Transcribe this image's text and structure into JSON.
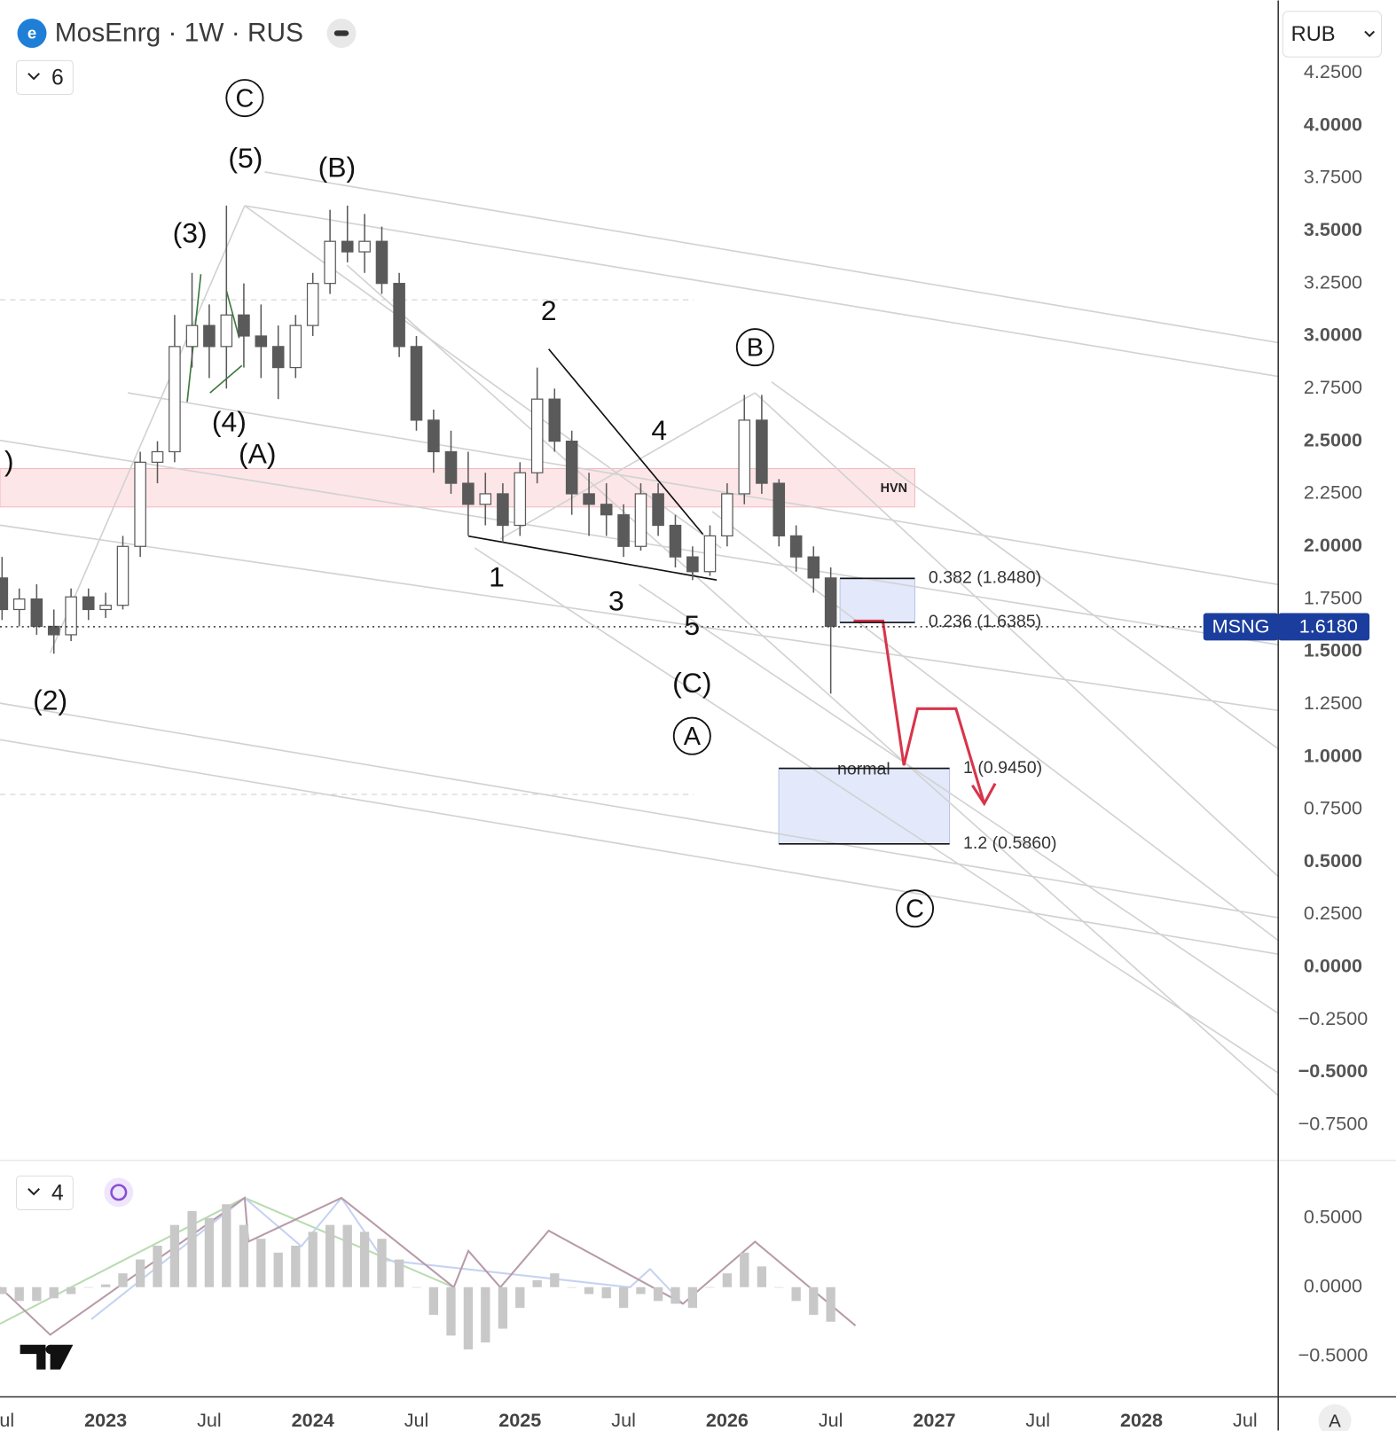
{
  "header": {
    "symbol": "MosEnrg · 1W · RUS",
    "layers": "6",
    "currency": "RUB",
    "indicators": "4",
    "auto": "A"
  },
  "annotations": [
    "C",
    "(5)",
    "(B)",
    "(3)",
    "(4)",
    "(A)",
    ")",
    "(2)",
    "2",
    "B",
    "4",
    "1",
    "3",
    "5",
    "(C)",
    "A",
    "C"
  ],
  "zones": {
    "hvn": "HVN",
    "normal": "normal"
  },
  "chart_data": [
    {
      "type": "candlestick",
      "color": "#5a5a5a",
      "x": [
        2022.5,
        2022.583,
        2022.667,
        2022.75,
        2022.833,
        2022.917,
        2023,
        2023.083,
        2023.167,
        2023.25,
        2023.333,
        2023.417,
        2023.5,
        2023.583,
        2023.667,
        2023.75,
        2023.833,
        2023.917,
        2024,
        2024.083,
        2024.167,
        2024.25,
        2024.333,
        2024.417,
        2024.5,
        2024.583,
        2024.667,
        2024.75,
        2024.833,
        2024.917,
        2025,
        2025.083,
        2025.167,
        2025.25,
        2025.333,
        2025.417,
        2025.5,
        2025.583,
        2025.667,
        2025.75,
        2025.833,
        2025.917,
        2026,
        2026.083,
        2026.167,
        2026.25,
        2026.333,
        2026.417,
        2026.5
      ],
      "open": [
        1.85,
        1.7,
        1.75,
        1.62,
        1.58,
        1.76,
        1.7,
        1.72,
        2.0,
        2.4,
        2.45,
        2.95,
        3.05,
        2.95,
        3.1,
        3.0,
        2.95,
        2.85,
        3.05,
        3.25,
        3.45,
        3.4,
        3.45,
        3.25,
        2.95,
        2.6,
        2.45,
        2.3,
        2.2,
        2.25,
        2.1,
        2.35,
        2.7,
        2.5,
        2.25,
        2.2,
        2.15,
        2.0,
        2.25,
        2.1,
        1.95,
        1.88,
        2.05,
        2.25,
        2.6,
        2.3,
        2.05,
        1.95,
        1.85
      ],
      "high": [
        1.95,
        1.8,
        1.82,
        1.7,
        1.8,
        1.8,
        1.78,
        2.05,
        2.45,
        2.5,
        3.1,
        3.3,
        3.15,
        3.62,
        3.25,
        3.15,
        3.05,
        3.1,
        3.3,
        3.6,
        3.62,
        3.58,
        3.52,
        3.3,
        3.0,
        2.65,
        2.55,
        2.45,
        2.35,
        2.3,
        2.4,
        2.85,
        2.75,
        2.55,
        2.35,
        2.3,
        2.2,
        2.3,
        2.3,
        2.15,
        2.0,
        2.1,
        2.3,
        2.72,
        2.72,
        2.32,
        2.1,
        2.0,
        1.9
      ],
      "low": [
        1.65,
        1.62,
        1.58,
        1.49,
        1.55,
        1.65,
        1.66,
        1.7,
        1.95,
        2.3,
        2.4,
        2.85,
        2.8,
        2.75,
        2.85,
        2.8,
        2.7,
        2.8,
        3.0,
        3.2,
        3.35,
        3.3,
        3.2,
        2.9,
        2.55,
        2.35,
        2.25,
        2.05,
        2.1,
        2.02,
        2.05,
        2.3,
        2.45,
        2.15,
        2.05,
        2.05,
        1.95,
        1.98,
        2.05,
        1.9,
        1.84,
        1.86,
        2.0,
        2.2,
        2.25,
        2.0,
        1.88,
        1.78,
        1.3
      ],
      "close": [
        1.7,
        1.75,
        1.62,
        1.58,
        1.76,
        1.7,
        1.72,
        2.0,
        2.4,
        2.45,
        2.95,
        3.05,
        2.95,
        3.1,
        3.0,
        2.95,
        2.85,
        3.05,
        3.25,
        3.45,
        3.4,
        3.45,
        3.25,
        2.95,
        2.6,
        2.45,
        2.3,
        2.2,
        2.25,
        2.1,
        2.35,
        2.7,
        2.5,
        2.25,
        2.2,
        2.15,
        2.0,
        2.25,
        2.1,
        1.95,
        1.88,
        2.05,
        2.25,
        2.6,
        2.3,
        2.05,
        1.95,
        1.85,
        1.62
      ],
      "xlim": [
        2022.49,
        2028.66
      ],
      "xticks": [
        {
          "value": 2022.5,
          "label": "Jul"
        },
        2023,
        {
          "value": 2023.5,
          "label": "Jul"
        },
        2024,
        {
          "value": 2024.5,
          "label": "Jul"
        },
        2025,
        {
          "value": 2025.5,
          "label": "Jul"
        },
        2026,
        {
          "value": 2026.5,
          "label": "Jul"
        },
        2027,
        {
          "value": 2027.5,
          "label": "Jul"
        },
        2028,
        {
          "value": 2028.5,
          "label": "Jul"
        }
      ],
      "ylim": [
        -0.91,
        4.4
      ],
      "yticks": [
        {
          "value": 4.25,
          "label": "4.2500"
        },
        {
          "value": 4,
          "label": "4.0000"
        },
        {
          "value": 3.75,
          "label": "3.7500"
        },
        {
          "value": 3.5,
          "label": "3.5000"
        },
        {
          "value": 3.25,
          "label": "3.2500"
        },
        {
          "value": 3,
          "label": "3.0000"
        },
        {
          "value": 2.75,
          "label": "2.7500"
        },
        {
          "value": 2.5,
          "label": "2.5000"
        },
        {
          "value": 2.25,
          "label": "2.2500"
        },
        {
          "value": 2,
          "label": "2.0000"
        },
        {
          "value": 1.75,
          "label": "1.7500"
        },
        {
          "value": 1.5,
          "label": "1.5000"
        },
        {
          "value": 1.25,
          "label": "1.2500"
        },
        {
          "value": 1,
          "label": "1.0000"
        },
        {
          "value": 0.75,
          "label": "0.7500"
        },
        {
          "value": 0.5,
          "label": "0.5000"
        },
        {
          "value": 0.25,
          "label": "0.2500"
        },
        {
          "value": 0,
          "label": "0.0000"
        },
        {
          "value": -0.25,
          "label": "−0.2500"
        },
        {
          "value": -0.5,
          "label": "−0.5000"
        },
        {
          "value": -0.75,
          "label": "−0.7500"
        }
      ],
      "grid": false,
      "last_price": {
        "name": "MSNG",
        "value": 1.618,
        "label": "1.6180",
        "color": "#1b3e9e"
      },
      "fib_levels": [
        {
          "value": 1.848,
          "label": "0.382 (1.8480)"
        },
        {
          "value": 1.6385,
          "label": "0.236 (1.6385)"
        },
        {
          "value": 0.945,
          "label": "1 (0.9450)"
        },
        {
          "value": 0.586,
          "label": "1.2 (0.5860)"
        }
      ]
    },
    {
      "type": "bar",
      "color": "#c8c8c8",
      "x": [
        2022.5,
        2022.583,
        2022.667,
        2022.75,
        2022.833,
        2022.917,
        2023,
        2023.083,
        2023.167,
        2023.25,
        2023.333,
        2023.417,
        2023.5,
        2023.583,
        2023.667,
        2023.75,
        2023.833,
        2023.917,
        2024,
        2024.083,
        2024.167,
        2024.25,
        2024.333,
        2024.417,
        2024.5,
        2024.583,
        2024.667,
        2024.75,
        2024.833,
        2024.917,
        2025,
        2025.083,
        2025.167,
        2025.25,
        2025.333,
        2025.417,
        2025.5,
        2025.583,
        2025.667,
        2025.75,
        2025.833,
        2025.917,
        2026,
        2026.083,
        2026.167,
        2026.25,
        2026.333,
        2026.417,
        2026.5
      ],
      "values": [
        -0.05,
        -0.1,
        -0.1,
        -0.08,
        -0.05,
        0,
        0.02,
        0.1,
        0.2,
        0.3,
        0.45,
        0.55,
        0.5,
        0.6,
        0.45,
        0.35,
        0.25,
        0.3,
        0.4,
        0.45,
        0.45,
        0.4,
        0.35,
        0.2,
        0,
        -0.2,
        -0.35,
        -0.45,
        -0.4,
        -0.3,
        -0.15,
        0.05,
        0.1,
        0,
        -0.05,
        -0.08,
        -0.15,
        -0.05,
        -0.1,
        -0.12,
        -0.15,
        0,
        0.1,
        0.25,
        0.15,
        0,
        -0.1,
        -0.2,
        -0.25
      ],
      "xlim": [
        2022.49,
        2028.66
      ],
      "ylim": [
        -0.78,
        0.91
      ],
      "yticks": [
        {
          "value": 0.5,
          "label": "0.5000"
        },
        {
          "value": 0,
          "label": "0.0000"
        },
        {
          "value": -0.5,
          "label": "−0.5000"
        }
      ]
    }
  ]
}
